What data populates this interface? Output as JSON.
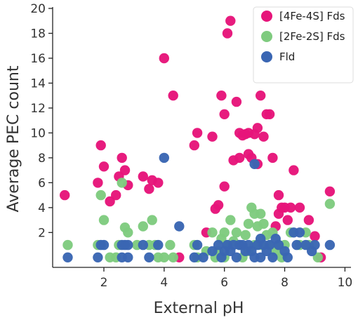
{
  "chart_data": {
    "type": "scatter",
    "title": "",
    "xlabel": "External pH",
    "ylabel": "Average PEC count",
    "xlim": [
      0.3,
      10.2
    ],
    "ylim": [
      -0.8,
      20
    ],
    "xticks": [
      2,
      4,
      6,
      8,
      10
    ],
    "yticks": [
      2,
      4,
      6,
      8,
      10,
      12,
      14,
      16,
      18,
      20
    ],
    "grid": false,
    "legend_position": "top-right",
    "series": [
      {
        "name": "[4Fe-4S] Fds",
        "color": "#E6157A",
        "points": [
          [
            0.7,
            5.0
          ],
          [
            1.8,
            6.0
          ],
          [
            1.9,
            9.0
          ],
          [
            2.0,
            7.3
          ],
          [
            2.2,
            4.5
          ],
          [
            2.4,
            5.0
          ],
          [
            2.5,
            6.5
          ],
          [
            2.6,
            8.0
          ],
          [
            2.7,
            7.0
          ],
          [
            2.8,
            5.8
          ],
          [
            3.3,
            6.5
          ],
          [
            3.5,
            5.5
          ],
          [
            3.6,
            6.2
          ],
          [
            3.8,
            6.0
          ],
          [
            4.0,
            16.0
          ],
          [
            4.3,
            13.0
          ],
          [
            4.5,
            0.0
          ],
          [
            5.0,
            9.0
          ],
          [
            5.1,
            10.0
          ],
          [
            5.4,
            2.0
          ],
          [
            5.6,
            9.7
          ],
          [
            5.7,
            3.9
          ],
          [
            5.8,
            4.2
          ],
          [
            5.9,
            13.0
          ],
          [
            6.0,
            11.5
          ],
          [
            6.0,
            5.7
          ],
          [
            6.1,
            18.0
          ],
          [
            6.2,
            19.0
          ],
          [
            6.3,
            7.8
          ],
          [
            6.4,
            12.5
          ],
          [
            6.5,
            10.0
          ],
          [
            6.5,
            8.0
          ],
          [
            6.6,
            9.8
          ],
          [
            6.7,
            9.9
          ],
          [
            6.8,
            10.0
          ],
          [
            6.8,
            8.3
          ],
          [
            6.9,
            8.0
          ],
          [
            7.0,
            9.9
          ],
          [
            7.1,
            7.5
          ],
          [
            7.1,
            10.4
          ],
          [
            7.2,
            13.0
          ],
          [
            7.3,
            9.7
          ],
          [
            7.4,
            11.5
          ],
          [
            7.5,
            11.5
          ],
          [
            7.6,
            8.0
          ],
          [
            7.7,
            2.5
          ],
          [
            7.8,
            5.0
          ],
          [
            7.8,
            3.5
          ],
          [
            7.9,
            4.0
          ],
          [
            8.0,
            4.0
          ],
          [
            8.1,
            3.0
          ],
          [
            8.2,
            4.0
          ],
          [
            8.3,
            7.0
          ],
          [
            8.5,
            4.0
          ],
          [
            8.8,
            3.0
          ],
          [
            9.0,
            1.7
          ],
          [
            9.2,
            0.0
          ],
          [
            9.5,
            5.3
          ]
        ]
      },
      {
        "name": "[2Fe-2S] Fds",
        "color": "#7FCB7F",
        "points": [
          [
            0.8,
            1.0
          ],
          [
            1.8,
            1.0
          ],
          [
            1.9,
            5.0
          ],
          [
            2.0,
            3.0
          ],
          [
            2.2,
            0.0
          ],
          [
            2.4,
            0.0
          ],
          [
            2.5,
            1.0
          ],
          [
            2.6,
            6.0
          ],
          [
            2.7,
            2.4
          ],
          [
            2.8,
            2.0
          ],
          [
            3.1,
            1.0
          ],
          [
            3.3,
            2.5
          ],
          [
            3.5,
            1.0
          ],
          [
            3.6,
            3.0
          ],
          [
            3.7,
            1.0
          ],
          [
            3.8,
            0.0
          ],
          [
            4.0,
            0.0
          ],
          [
            4.2,
            1.0
          ],
          [
            4.3,
            0.0
          ],
          [
            5.0,
            1.0
          ],
          [
            5.1,
            0.0
          ],
          [
            5.4,
            0.5
          ],
          [
            5.6,
            2.0
          ],
          [
            5.7,
            0.0
          ],
          [
            5.8,
            0.5
          ],
          [
            5.9,
            1.5
          ],
          [
            6.0,
            2.0
          ],
          [
            6.0,
            0.0
          ],
          [
            6.1,
            1.0
          ],
          [
            6.2,
            3.0
          ],
          [
            6.3,
            1.3
          ],
          [
            6.4,
            2.0
          ],
          [
            6.5,
            1.0
          ],
          [
            6.6,
            0.0
          ],
          [
            6.7,
            1.8
          ],
          [
            6.8,
            2.7
          ],
          [
            6.8,
            0.5
          ],
          [
            6.9,
            4.0
          ],
          [
            7.0,
            3.5
          ],
          [
            7.0,
            1.0
          ],
          [
            7.1,
            2.5
          ],
          [
            7.2,
            1.0
          ],
          [
            7.2,
            3.5
          ],
          [
            7.3,
            2.7
          ],
          [
            7.4,
            1.8
          ],
          [
            7.5,
            1.0
          ],
          [
            7.6,
            2.0
          ],
          [
            7.7,
            0.5
          ],
          [
            7.8,
            1.0
          ],
          [
            7.9,
            0.0
          ],
          [
            8.0,
            1.0
          ],
          [
            8.2,
            2.0
          ],
          [
            8.5,
            1.0
          ],
          [
            8.7,
            2.0
          ],
          [
            8.8,
            1.0
          ],
          [
            9.1,
            0.0
          ],
          [
            9.5,
            4.3
          ]
        ]
      },
      {
        "name": "Fld",
        "color": "#3A66B3",
        "points": [
          [
            0.8,
            0.0
          ],
          [
            1.8,
            0.0
          ],
          [
            1.9,
            1.0
          ],
          [
            2.0,
            1.0
          ],
          [
            2.6,
            0.0
          ],
          [
            2.6,
            1.0
          ],
          [
            2.7,
            1.0
          ],
          [
            2.8,
            1.0
          ],
          [
            2.8,
            0.0
          ],
          [
            3.3,
            1.0
          ],
          [
            3.5,
            0.0
          ],
          [
            3.8,
            1.0
          ],
          [
            4.0,
            8.0
          ],
          [
            4.5,
            2.5
          ],
          [
            5.0,
            0.0
          ],
          [
            5.1,
            1.0
          ],
          [
            5.3,
            0.0
          ],
          [
            5.6,
            0.5
          ],
          [
            5.8,
            1.0
          ],
          [
            5.9,
            0.0
          ],
          [
            6.0,
            0.5
          ],
          [
            6.1,
            1.0
          ],
          [
            6.2,
            0.5
          ],
          [
            6.3,
            1.0
          ],
          [
            6.4,
            0.0
          ],
          [
            6.5,
            1.0
          ],
          [
            6.6,
            1.0
          ],
          [
            6.7,
            0.5
          ],
          [
            6.8,
            1.0
          ],
          [
            6.9,
            0.5
          ],
          [
            7.0,
            0.0
          ],
          [
            7.0,
            7.5
          ],
          [
            7.1,
            1.0
          ],
          [
            7.2,
            0.0
          ],
          [
            7.2,
            1.5
          ],
          [
            7.3,
            1.0
          ],
          [
            7.4,
            0.5
          ],
          [
            7.5,
            1.0
          ],
          [
            7.6,
            0.0
          ],
          [
            7.7,
            1.5
          ],
          [
            7.8,
            1.0
          ],
          [
            8.0,
            0.5
          ],
          [
            8.1,
            0.0
          ],
          [
            8.3,
            2.0
          ],
          [
            8.4,
            1.0
          ],
          [
            8.5,
            2.0
          ],
          [
            8.7,
            1.0
          ],
          [
            8.9,
            0.5
          ],
          [
            9.0,
            1.0
          ],
          [
            9.5,
            1.0
          ]
        ]
      }
    ]
  }
}
